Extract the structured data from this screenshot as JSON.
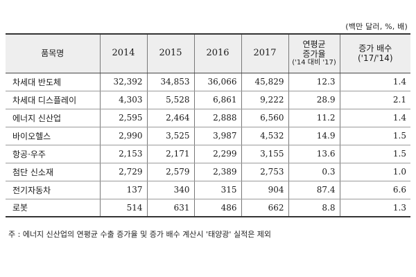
{
  "unit_note": "(백만 달러, %, 배)",
  "table": {
    "headers": {
      "name": "품목명",
      "years": [
        "2014",
        "2015",
        "2016",
        "2017"
      ],
      "cagr_title": "연평균\n증가율",
      "cagr_sub": "('14 대비 '17)",
      "mult_title": "증가 배수",
      "mult_sub": "('17/'14)"
    },
    "rows": [
      {
        "name": "차세대 반도체",
        "y2014": "32,392",
        "y2015": "34,853",
        "y2016": "36,066",
        "y2017": "45,829",
        "cagr": "12.3",
        "mult": "1.4"
      },
      {
        "name": "차세대 디스플레이",
        "y2014": "4,303",
        "y2015": "5,528",
        "y2016": "6,861",
        "y2017": "9,222",
        "cagr": "28.9",
        "mult": "2.1"
      },
      {
        "name": "에너지 신산업",
        "y2014": "2,595",
        "y2015": "2,464",
        "y2016": "2,888",
        "y2017": "6,560",
        "cagr": "11.2",
        "mult": "1.4"
      },
      {
        "name": "바이오헬스",
        "y2014": "2,990",
        "y2015": "3,525",
        "y2016": "3,987",
        "y2017": "4,532",
        "cagr": "14.9",
        "mult": "1.5"
      },
      {
        "name": "항공·우주",
        "y2014": "2,153",
        "y2015": "2,171",
        "y2016": "2,299",
        "y2017": "3,155",
        "cagr": "13.6",
        "mult": "1.5"
      },
      {
        "name": "첨단 신소재",
        "y2014": "2,729",
        "y2015": "2,579",
        "y2016": "2,389",
        "y2017": "2,753",
        "cagr": "0.3",
        "mult": "1.0"
      },
      {
        "name": "전기자동차",
        "y2014": "137",
        "y2015": "340",
        "y2016": "315",
        "y2017": "904",
        "cagr": "87.4",
        "mult": "6.6"
      },
      {
        "name": "로봇",
        "y2014": "514",
        "y2015": "631",
        "y2016": "486",
        "y2017": "662",
        "cagr": "8.8",
        "mult": "1.3"
      }
    ]
  },
  "footnote": "주 : 에너지 신산업의 연평균 수출 증가율 및 증가 배수 계산시 '태양광' 실적은 제외"
}
